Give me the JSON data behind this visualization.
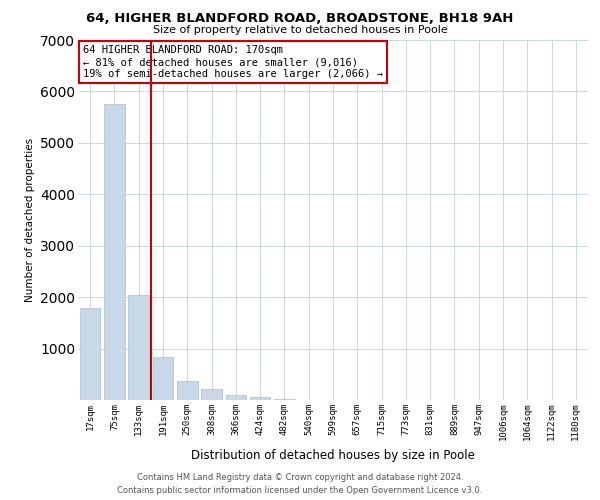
{
  "title": "64, HIGHER BLANDFORD ROAD, BROADSTONE, BH18 9AH",
  "subtitle": "Size of property relative to detached houses in Poole",
  "xlabel": "Distribution of detached houses by size in Poole",
  "ylabel": "Number of detached properties",
  "bar_labels": [
    "17sqm",
    "75sqm",
    "133sqm",
    "191sqm",
    "250sqm",
    "308sqm",
    "366sqm",
    "424sqm",
    "482sqm",
    "540sqm",
    "599sqm",
    "657sqm",
    "715sqm",
    "773sqm",
    "831sqm",
    "889sqm",
    "947sqm",
    "1006sqm",
    "1064sqm",
    "1122sqm",
    "1180sqm"
  ],
  "bar_values": [
    1780,
    5750,
    2050,
    830,
    370,
    220,
    105,
    55,
    20,
    5,
    2,
    0,
    0,
    0,
    0,
    0,
    0,
    0,
    0,
    0,
    0
  ],
  "bar_color": "#c8d8e8",
  "bar_edge_color": "#a8c0d0",
  "vline_x": 2.5,
  "vline_color": "#cc0000",
  "annotation_title": "64 HIGHER BLANDFORD ROAD: 170sqm",
  "annotation_line1": "← 81% of detached houses are smaller (9,016)",
  "annotation_line2": "19% of semi-detached houses are larger (2,066) →",
  "annotation_box_color": "#ffffff",
  "annotation_box_edge": "#cc0000",
  "ylim": [
    0,
    7000
  ],
  "yticks": [
    0,
    1000,
    2000,
    3000,
    4000,
    5000,
    6000,
    7000
  ],
  "footer1": "Contains HM Land Registry data © Crown copyright and database right 2024.",
  "footer2": "Contains public sector information licensed under the Open Government Licence v3.0.",
  "bg_color": "#ffffff",
  "grid_color": "#c8d8e8"
}
